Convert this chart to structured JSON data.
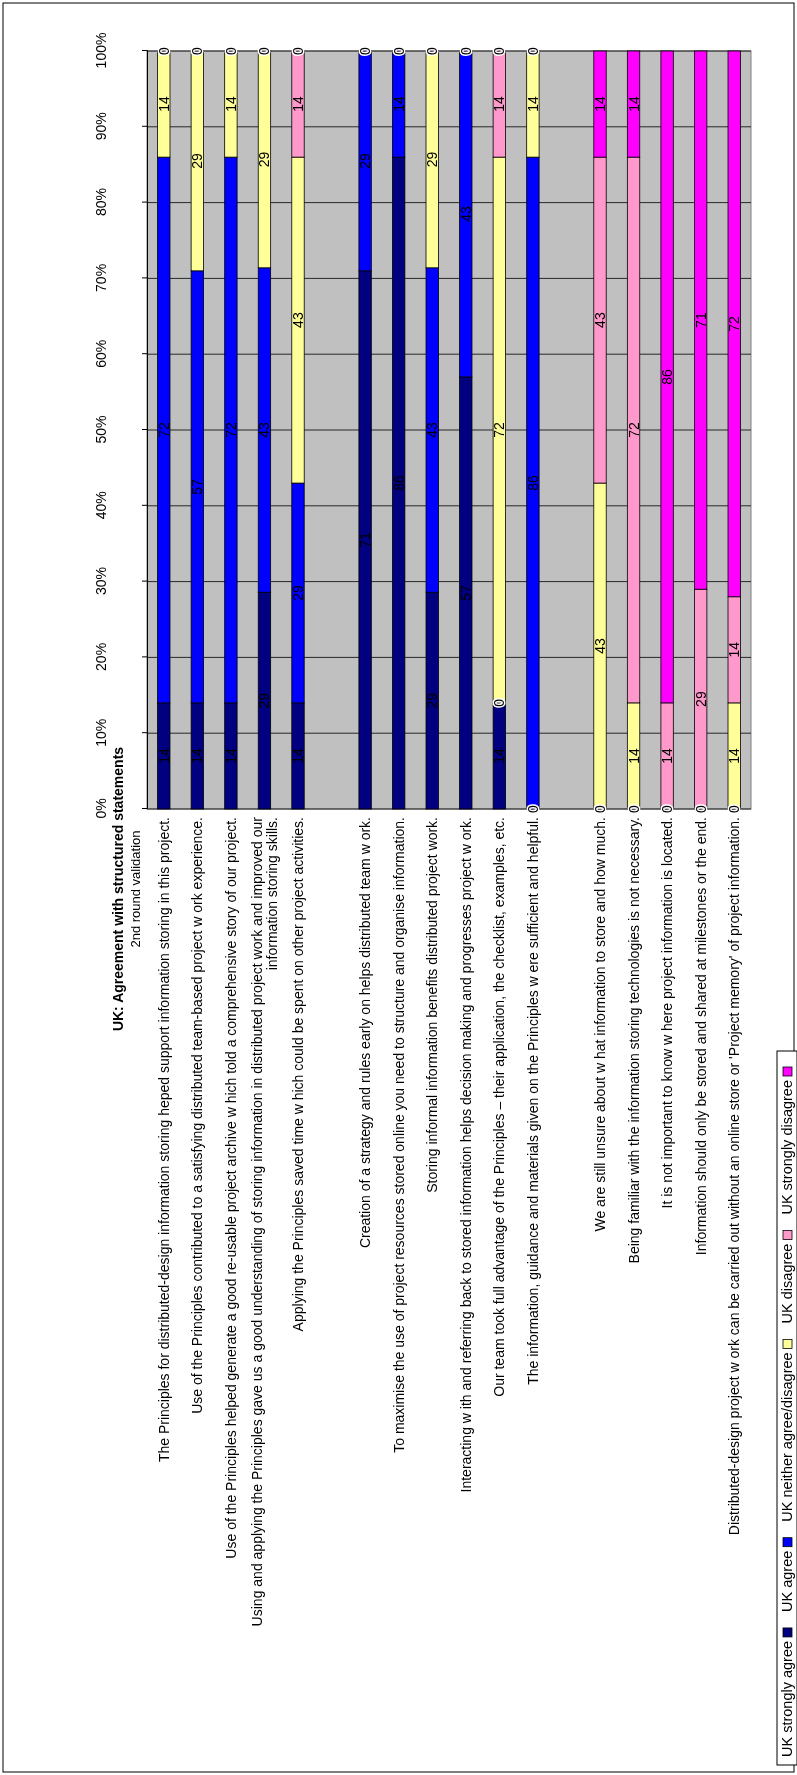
{
  "chart_data": {
    "type": "bar",
    "stacked": true,
    "title": "UK: Agreement with structured statements",
    "subtitle": "2nd round validation",
    "categories": [
      "The Principles for distributed-design information storing heped support information storing in this project.",
      "Use of the Principles contributed to a satisfying distributed team-based project w ork experience.",
      "Use of the Principles helped generate a good re-usable project archive w hich told a comprehensive story of our project.",
      "Using and applying the Principles gave us a good understanding of storing information in distributed project work and improved our information storing skills.",
      "Applying the Principles saved time w hich could be spent on other project activities.",
      null,
      "Creation of a strategy and rules early on helps distributed team w ork.",
      "To maximise the use of project resources stored online you need to structure and organise information.",
      "Storing informal information benefits distributed project work.",
      "Interacting w ith and referring back to stored information helps decision making and progresses project w ork.",
      "Our team took full advantage of the Principles – their application, the checklist, examples, etc.",
      "The information, guidance and materials given on the Principles w ere sufficient and helpful.",
      null,
      "We are still unsure about w hat information to store and how much.",
      "Being familiar with the information storing technologies is not necessary.",
      "It is not important to know w here project information is located.",
      "Information should only be stored and shared at milestones or the end.",
      "Distributed-design project w ork can be carried out without an online store or 'Project memory' of project information."
    ],
    "series": [
      {
        "name": "UK strongly agree",
        "color": "#000080",
        "values": [
          14,
          14,
          14,
          28.6,
          14,
          null,
          71,
          86,
          28.6,
          57,
          14,
          0,
          null,
          0,
          0,
          0,
          0,
          0
        ],
        "value_labels": [
          "14",
          "14",
          "14",
          "29",
          "14",
          null,
          "71",
          "86",
          "29",
          "57",
          "14",
          "0",
          null,
          "0",
          "0",
          "0",
          "0",
          "0"
        ]
      },
      {
        "name": "UK agree",
        "color": "#0000ff",
        "values": [
          72,
          57,
          72,
          42.8,
          29,
          null,
          29,
          14,
          42.8,
          43,
          0,
          86,
          null,
          0,
          0,
          0,
          0,
          0
        ],
        "value_labels": [
          "72",
          "57",
          "72",
          "43",
          "29",
          null,
          "29",
          "14",
          "43",
          "43",
          "0",
          "86",
          null,
          null,
          null,
          null,
          null,
          null
        ]
      },
      {
        "name": "UK neither agree/disagree",
        "color": "#ffff99",
        "values": [
          14,
          29,
          14,
          28.6,
          43,
          null,
          0,
          0,
          28.6,
          0,
          72,
          14,
          null,
          43,
          14,
          0,
          0,
          14
        ],
        "value_labels": [
          "14",
          "29",
          "14",
          "29",
          "43",
          null,
          null,
          null,
          "29",
          null,
          "72",
          "14",
          null,
          "43",
          "14",
          null,
          null,
          "14"
        ]
      },
      {
        "name": "UK disagree",
        "color": "#ff99cc",
        "values": [
          0,
          0,
          0,
          0,
          14,
          null,
          0,
          0,
          0,
          0,
          14,
          0,
          null,
          43,
          72,
          14,
          29,
          14
        ],
        "value_labels": [
          null,
          null,
          null,
          null,
          "14",
          null,
          null,
          null,
          null,
          null,
          "14",
          null,
          null,
          "43",
          "72",
          "14",
          "29",
          "14"
        ]
      },
      {
        "name": "UK strongly disagree",
        "color": "#ff00ff",
        "values": [
          0,
          0,
          0,
          0,
          0,
          null,
          0,
          0,
          0,
          0,
          0,
          0,
          null,
          14,
          14,
          86,
          71,
          72
        ],
        "value_labels": [
          "0",
          "0",
          "0",
          "0",
          "0",
          null,
          "0",
          "0",
          "0",
          "0",
          "0",
          "0",
          null,
          "14",
          "14",
          "86",
          "71",
          "72"
        ]
      }
    ],
    "ylim": [
      0,
      100
    ],
    "yticks": [
      {
        "value": 0,
        "label": "0%"
      },
      {
        "value": 10,
        "label": "10%"
      },
      {
        "value": 20,
        "label": "20%"
      },
      {
        "value": 30,
        "label": "30%"
      },
      {
        "value": 40,
        "label": "40%"
      },
      {
        "value": 50,
        "label": "50%"
      },
      {
        "value": 60,
        "label": "60%"
      },
      {
        "value": 70,
        "label": "70%"
      },
      {
        "value": 80,
        "label": "80%"
      },
      {
        "value": 90,
        "label": "90%"
      },
      {
        "value": 100,
        "label": "100%"
      }
    ],
    "grid": "y",
    "legend": "bottom"
  }
}
